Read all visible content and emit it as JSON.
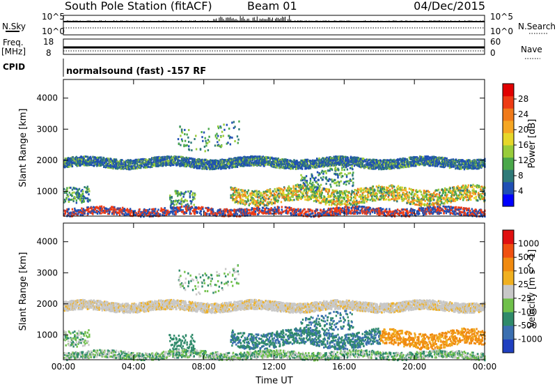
{
  "header": {
    "title": "South Pole Station (fitACF)",
    "beam": "Beam 01",
    "date": "04/Dec/2015"
  },
  "top_panels": {
    "nsky_label": "N.Sky",
    "nsky_ticks": [
      "10^5",
      "10^0"
    ],
    "nsearch_label": "N.Search",
    "nsearch_ticks": [
      "10^5",
      "10^0"
    ],
    "freq_label": "Freq.",
    "freq_unit": "[MHz]",
    "freq_ticks": [
      "18",
      "8"
    ],
    "nave_label": "Nave",
    "nave_ticks": [
      "60",
      "0"
    ],
    "cpid_label": "CPID",
    "cpid_text": "normalsound (fast) -157 RF"
  },
  "chart_data": [
    {
      "type": "heatmap",
      "name": "power",
      "ylabel": "Slant Range [km]",
      "xlabel": "",
      "ylim": [
        200,
        4600
      ],
      "yticks": [
        "1000",
        "2000",
        "3000",
        "4000"
      ],
      "xlim_hours": [
        0,
        24
      ],
      "colorbar": {
        "label": "Power [dB]",
        "ticks": [
          "4",
          "8",
          "12",
          "16",
          "20",
          "24",
          "28"
        ],
        "colors": [
          "#0000ff",
          "#1f4fb4",
          "#2f7a78",
          "#4aa84a",
          "#98cc3a",
          "#e6d72a",
          "#f5a623",
          "#f07a1a",
          "#ee3b14",
          "#e10000"
        ]
      }
    },
    {
      "type": "heatmap",
      "name": "velocity",
      "ylabel": "Slant Range [km]",
      "xlabel": "Time UT",
      "ylim": [
        200,
        4600
      ],
      "yticks": [
        "1000",
        "2000",
        "3000",
        "4000"
      ],
      "xticks": [
        "00:00",
        "04:00",
        "08:00",
        "12:00",
        "16:00",
        "20:00",
        "00:00"
      ],
      "xlim_hours": [
        0,
        24
      ],
      "colorbar": {
        "label": "Velocity [m s^-1]",
        "ticks": [
          "1000",
          "500",
          "100",
          "25",
          "-25",
          "-100",
          "-500",
          "-1000"
        ],
        "colors": [
          "#2040c0",
          "#3b6fb0",
          "#2f8a6a",
          "#6fc04a",
          "#c8c8c8",
          "#f0b020",
          "#f08a10",
          "#f05010",
          "#e01010"
        ]
      }
    }
  ]
}
